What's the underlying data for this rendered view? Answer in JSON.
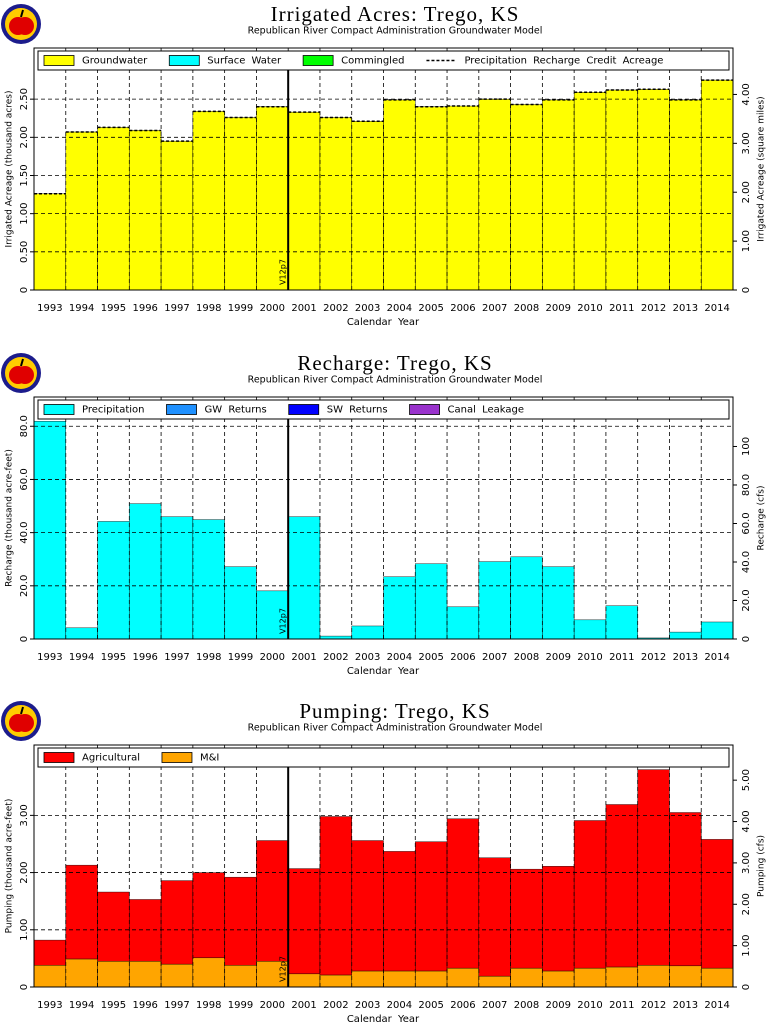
{
  "chart_data": [
    {
      "type": "bar",
      "stacked": true,
      "title": "Irrigated Acres: Trego, KS",
      "subtitle": "Republican River Compact Administration Groundwater Model",
      "xlabel": "Calendar Year",
      "ylabel": "Irrigated Acreage (thousand acres)",
      "y2label": "Irrigated Acreage (square miles)",
      "annotation": "V12p7",
      "legend": "top",
      "grid": true,
      "categories": [
        "1993",
        "1994",
        "1995",
        "1996",
        "1997",
        "1998",
        "1999",
        "2000",
        "2001",
        "2002",
        "2003",
        "2004",
        "2005",
        "2006",
        "2007",
        "2008",
        "2009",
        "2010",
        "2011",
        "2012",
        "2013",
        "2014"
      ],
      "series": [
        {
          "name": "Groundwater",
          "color": "#ffff00",
          "values": [
            1.26,
            2.07,
            2.13,
            2.09,
            1.95,
            2.34,
            2.26,
            2.4,
            2.33,
            2.26,
            2.21,
            2.49,
            2.4,
            2.41,
            2.5,
            2.43,
            2.49,
            2.59,
            2.62,
            2.63,
            2.49,
            2.75
          ]
        },
        {
          "name": "Surface Water",
          "color": "#00ffff",
          "values": [
            0,
            0,
            0,
            0,
            0,
            0,
            0,
            0,
            0,
            0,
            0,
            0,
            0,
            0,
            0,
            0,
            0,
            0,
            0,
            0,
            0,
            0
          ]
        },
        {
          "name": "Commingled",
          "color": "#00ff00",
          "values": [
            0,
            0,
            0,
            0,
            0,
            0,
            0,
            0,
            0,
            0,
            0,
            0,
            0,
            0,
            0,
            0,
            0,
            0,
            0,
            0,
            0,
            0
          ]
        },
        {
          "name": "Precipitation Recharge Credit Acreage",
          "type": "line",
          "dashed": true,
          "color": "#000000",
          "values": [
            1.26,
            2.07,
            2.13,
            2.09,
            1.95,
            2.34,
            2.26,
            2.4,
            2.33,
            2.26,
            2.21,
            2.49,
            2.4,
            2.41,
            2.5,
            2.43,
            2.49,
            2.59,
            2.62,
            2.63,
            2.49,
            2.75
          ]
        }
      ],
      "ylim": [
        0,
        3.17
      ],
      "yticks": [
        0,
        {
          "value": 0.5,
          "label": "0.50"
        },
        {
          "value": 1,
          "label": "1.00"
        },
        {
          "value": 1.5,
          "label": "1.50"
        },
        {
          "value": 2,
          "label": "2.00"
        },
        {
          "value": 2.5,
          "label": "2.50"
        }
      ],
      "y2lim": [
        0,
        4.95
      ],
      "y2ticks": [
        0,
        {
          "value": 1,
          "label": "1.00"
        },
        {
          "value": 2,
          "label": "2.00"
        },
        {
          "value": 3,
          "label": "3.00"
        },
        {
          "value": 4,
          "label": "4.00"
        }
      ]
    },
    {
      "type": "bar",
      "stacked": true,
      "title": "Recharge: Trego, KS",
      "subtitle": "Republican River Compact Administration Groundwater Model",
      "xlabel": "Calendar Year",
      "ylabel": "Recharge (thousand acre-feet)",
      "y2label": "Recharge (cfs)",
      "annotation": "V12p7",
      "legend": "top",
      "grid": true,
      "categories": [
        "1993",
        "1994",
        "1995",
        "1996",
        "1997",
        "1998",
        "1999",
        "2000",
        "2001",
        "2002",
        "2003",
        "2004",
        "2005",
        "2006",
        "2007",
        "2008",
        "2009",
        "2010",
        "2011",
        "2012",
        "2013",
        "2014"
      ],
      "series": [
        {
          "name": "Precipitation",
          "color": "#00ffff",
          "values": [
            81.9,
            4.2,
            44.2,
            50.9,
            46.0,
            44.9,
            27.2,
            18.1,
            46.0,
            1.1,
            4.9,
            23.4,
            28.3,
            12.1,
            29.1,
            30.9,
            27.2,
            7.2,
            12.5,
            0.4,
            2.6,
            6.4
          ]
        },
        {
          "name": "GW Returns",
          "color": "#1e90ff",
          "values": [
            0,
            0,
            0,
            0,
            0,
            0,
            0,
            0,
            0,
            0,
            0,
            0,
            0,
            0,
            0,
            0,
            0,
            0,
            0,
            0,
            0,
            0
          ]
        },
        {
          "name": "SW Returns",
          "color": "#0000ff",
          "values": [
            0,
            0,
            0,
            0,
            0,
            0,
            0,
            0,
            0,
            0,
            0,
            0,
            0,
            0,
            0,
            0,
            0,
            0,
            0,
            0,
            0,
            0
          ]
        },
        {
          "name": "Canal Leakage",
          "color": "#9932cc",
          "values": [
            0,
            0,
            0,
            0,
            0,
            0,
            0,
            0,
            0,
            0,
            0,
            0,
            0,
            0,
            0,
            0,
            0,
            0,
            0,
            0,
            0,
            0
          ]
        }
      ],
      "ylim": [
        0,
        91
      ],
      "yticks": [
        0,
        {
          "value": 20,
          "label": "20.0"
        },
        {
          "value": 40,
          "label": "40.0"
        },
        {
          "value": 60,
          "label": "60.0"
        },
        {
          "value": 80,
          "label": "80.0"
        }
      ],
      "y2lim": [
        0,
        125.7
      ],
      "y2ticks": [
        0,
        {
          "value": 20,
          "label": "20.0"
        },
        {
          "value": 40,
          "label": "40.0"
        },
        {
          "value": 60,
          "label": "60.0"
        },
        {
          "value": 80,
          "label": "80.0"
        },
        100
      ]
    },
    {
      "type": "bar",
      "stacked": true,
      "title": "Pumping: Trego, KS",
      "subtitle": "Republican River Compact Administration Groundwater Model",
      "xlabel": "Calendar Year",
      "ylabel": "Pumping (thousand acre-feet)",
      "y2label": "Pumping (cfs)",
      "annotation": "V12p7",
      "legend": "top",
      "grid": true,
      "categories": [
        "1993",
        "1994",
        "1995",
        "1996",
        "1997",
        "1998",
        "1999",
        "2000",
        "2001",
        "2002",
        "2003",
        "2004",
        "2005",
        "2006",
        "2007",
        "2008",
        "2009",
        "2010",
        "2011",
        "2012",
        "2013",
        "2014"
      ],
      "series": [
        {
          "name": "Agricultural",
          "color": "#ff0000",
          "values": [
            0.44,
            1.64,
            1.21,
            1.08,
            1.46,
            1.49,
            1.54,
            2.11,
            1.84,
            2.77,
            2.28,
            2.09,
            2.26,
            2.61,
            2.07,
            1.73,
            1.83,
            2.58,
            2.84,
            3.42,
            2.68,
            2.25
          ]
        },
        {
          "name": "M&I",
          "color": "#ffa500",
          "values": [
            0.38,
            0.49,
            0.45,
            0.45,
            0.4,
            0.51,
            0.38,
            0.45,
            0.23,
            0.21,
            0.28,
            0.28,
            0.28,
            0.33,
            0.19,
            0.33,
            0.28,
            0.33,
            0.35,
            0.38,
            0.37,
            0.33
          ]
        }
      ],
      "ylim": [
        0,
        4.23
      ],
      "yticks": [
        0,
        {
          "value": 1,
          "label": "1.00"
        },
        {
          "value": 2,
          "label": "2.00"
        },
        {
          "value": 3,
          "label": "3.00"
        }
      ],
      "y2lim": [
        0,
        5.85
      ],
      "y2ticks": [
        0,
        {
          "value": 1,
          "label": "1.00"
        },
        {
          "value": 2,
          "label": "2.00"
        },
        {
          "value": 3,
          "label": "3.00"
        },
        {
          "value": 4,
          "label": "4.00"
        },
        {
          "value": 5,
          "label": "5.00"
        }
      ]
    }
  ]
}
